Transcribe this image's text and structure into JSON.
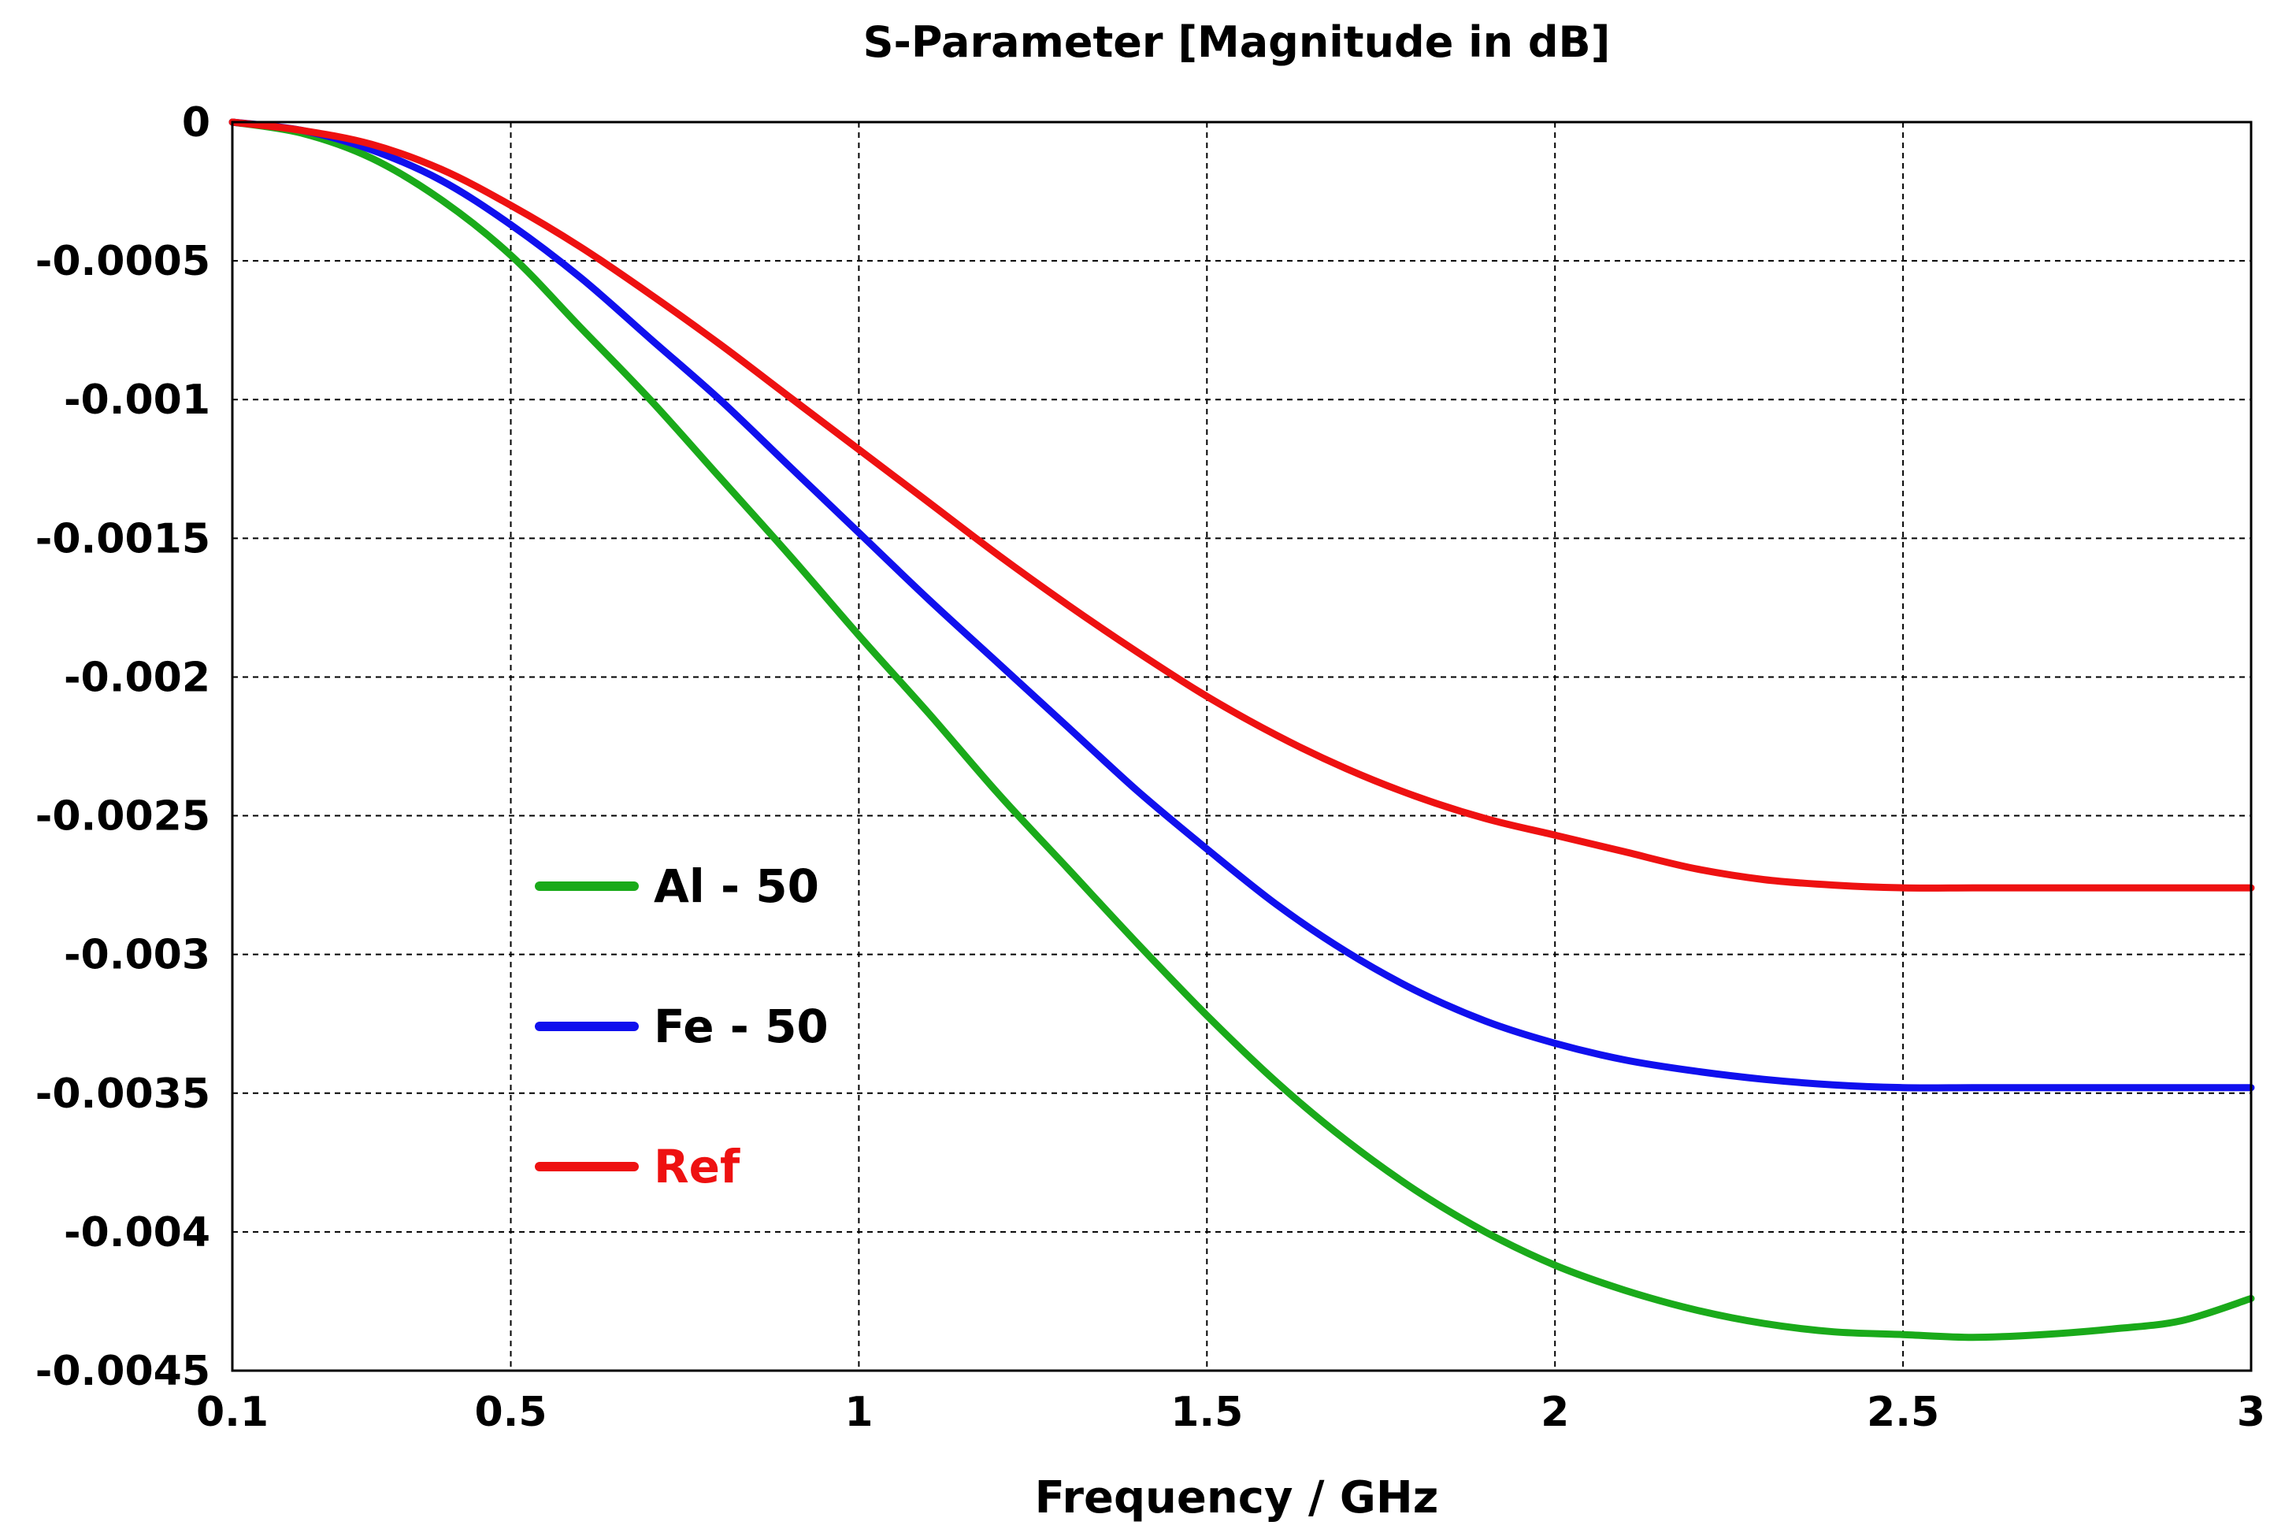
{
  "chart_data": {
    "type": "line",
    "title": "S-Parameter [Magnitude in dB]",
    "xlabel": "Frequency / GHz",
    "ylabel": "",
    "xlim": [
      0.1,
      3
    ],
    "ylim": [
      -0.0045,
      0
    ],
    "xticks": [
      0.1,
      0.5,
      1,
      1.5,
      2,
      2.5,
      3
    ],
    "xtick_labels": [
      "0.1",
      "0.5",
      "1",
      "1.5",
      "2",
      "2.5",
      "3"
    ],
    "yticks": [
      0,
      -0.0005,
      -0.001,
      -0.0015,
      -0.002,
      -0.0025,
      -0.003,
      -0.0035,
      -0.004,
      -0.0045
    ],
    "ytick_labels": [
      "0",
      "-0.0005",
      "-0.001",
      "-0.0015",
      "-0.002",
      "-0.0025",
      "-0.003",
      "-0.0035",
      "-0.004",
      "-0.0045"
    ],
    "grid": true,
    "legend_position": "center-left",
    "x": [
      0.1,
      0.2,
      0.3,
      0.4,
      0.5,
      0.6,
      0.7,
      0.8,
      0.9,
      1.0,
      1.1,
      1.2,
      1.3,
      1.4,
      1.5,
      1.6,
      1.7,
      1.8,
      1.9,
      2.0,
      2.1,
      2.2,
      2.3,
      2.4,
      2.5,
      2.6,
      2.7,
      2.8,
      2.9,
      3.0
    ],
    "series": [
      {
        "name": "Al - 50",
        "color": "#1aaa1a",
        "label_color": "#000000",
        "values": [
          0,
          -4e-05,
          -0.00013,
          -0.00028,
          -0.00048,
          -0.00074,
          -0.001,
          -0.00128,
          -0.00156,
          -0.00185,
          -0.00213,
          -0.00242,
          -0.00269,
          -0.00296,
          -0.00322,
          -0.00346,
          -0.00367,
          -0.00385,
          -0.004,
          -0.00412,
          -0.00421,
          -0.00428,
          -0.00433,
          -0.00436,
          -0.00437,
          -0.00438,
          -0.00437,
          -0.00435,
          -0.00432,
          -0.00424
        ]
      },
      {
        "name": "Fe - 50",
        "color": "#1010ee",
        "label_color": "#000000",
        "values": [
          0,
          -3e-05,
          -0.0001,
          -0.00021,
          -0.00037,
          -0.00056,
          -0.00078,
          -0.001,
          -0.00124,
          -0.00148,
          -0.00172,
          -0.00195,
          -0.00218,
          -0.00241,
          -0.00262,
          -0.00282,
          -0.00299,
          -0.00313,
          -0.00324,
          -0.00332,
          -0.00338,
          -0.00342,
          -0.00345,
          -0.00347,
          -0.00348,
          -0.00348,
          -0.00348,
          -0.00348,
          -0.00348,
          -0.00348
        ]
      },
      {
        "name": "Ref",
        "color": "#ee1111",
        "label_color": "#ee1111",
        "values": [
          0,
          -3e-05,
          -8e-05,
          -0.00017,
          -0.0003,
          -0.00045,
          -0.00062,
          -0.0008,
          -0.00099,
          -0.00118,
          -0.00137,
          -0.00156,
          -0.00174,
          -0.00191,
          -0.00207,
          -0.00221,
          -0.00233,
          -0.00243,
          -0.00251,
          -0.00257,
          -0.00263,
          -0.00269,
          -0.00273,
          -0.00275,
          -0.00276,
          -0.00276,
          -0.00276,
          -0.00276,
          -0.00276,
          -0.00276
        ]
      }
    ]
  }
}
